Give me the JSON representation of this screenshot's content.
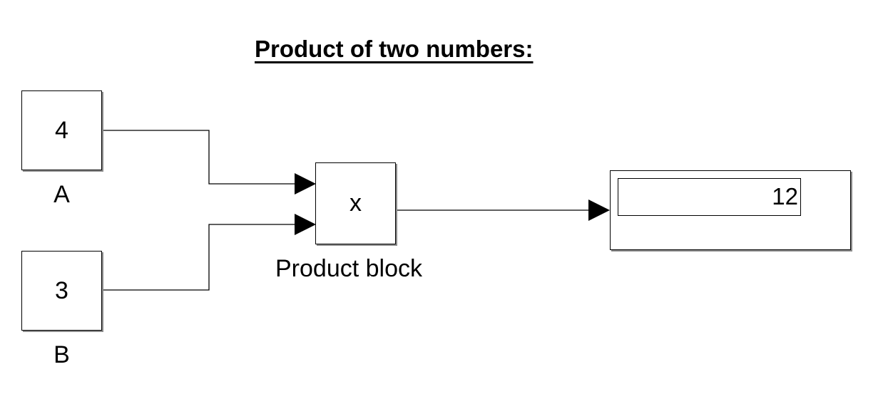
{
  "diagram": {
    "title": "Product of two numbers:",
    "blocks": {
      "a": {
        "value": "4",
        "label": "A"
      },
      "b": {
        "value": "3",
        "label": "B"
      },
      "product": {
        "symbol": "x",
        "label": "Product block"
      },
      "display": {
        "value": "12"
      }
    }
  }
}
